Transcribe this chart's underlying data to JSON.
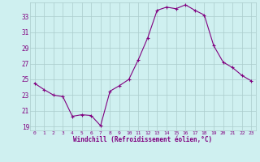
{
  "hours": [
    0,
    1,
    2,
    3,
    4,
    5,
    6,
    7,
    8,
    9,
    10,
    11,
    12,
    13,
    14,
    15,
    16,
    17,
    18,
    19,
    20,
    21,
    22,
    23
  ],
  "values": [
    24.5,
    23.7,
    23.0,
    22.8,
    20.3,
    20.5,
    20.4,
    19.1,
    23.5,
    24.2,
    25.0,
    27.5,
    30.3,
    33.8,
    34.2,
    34.0,
    34.5,
    33.8,
    33.2,
    29.3,
    27.2,
    26.5,
    25.5,
    24.8
  ],
  "line_color": "#800080",
  "marker": "+",
  "marker_color": "#800080",
  "bg_color": "#cff0f0",
  "grid_color": "#aacccc",
  "tick_label_color": "#800080",
  "xlabel": "Windchill (Refroidissement éolien,°C)",
  "xlabel_color": "#800080",
  "yticks": [
    19,
    21,
    23,
    25,
    27,
    29,
    31,
    33
  ],
  "ylim": [
    18.5,
    34.8
  ],
  "xlim": [
    -0.5,
    23.5
  ],
  "xticks": [
    0,
    1,
    2,
    3,
    4,
    5,
    6,
    7,
    8,
    9,
    10,
    11,
    12,
    13,
    14,
    15,
    16,
    17,
    18,
    19,
    20,
    21,
    22,
    23
  ]
}
